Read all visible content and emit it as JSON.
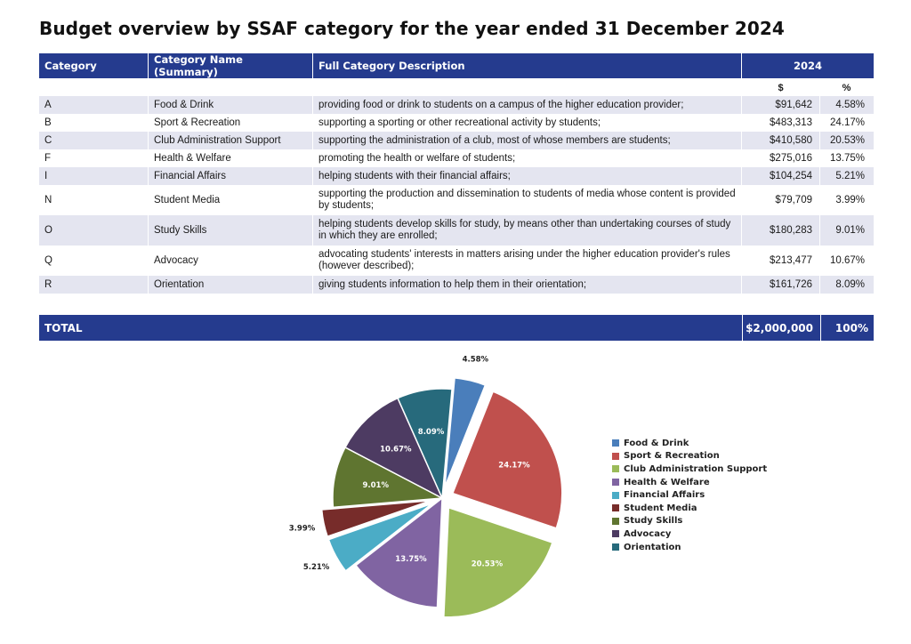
{
  "title": "Budget overview by SSAF category for the year ended 31 December 2024",
  "table": {
    "headers": {
      "category": "Category",
      "name": "Category Name (Summary)",
      "description": "Full Category Description",
      "year": "2024"
    },
    "units": {
      "amount": "$",
      "percent": "%"
    },
    "rows": [
      {
        "category": "A",
        "name": "Food & Drink",
        "description": "providing food or drink to students on a campus of the higher education provider;",
        "amount": "$91,642",
        "percent": "4.58%"
      },
      {
        "category": "B",
        "name": "Sport & Recreation",
        "description": "supporting a sporting or other recreational activity by students;",
        "amount": "$483,313",
        "percent": "24.17%"
      },
      {
        "category": "C",
        "name": "Club Administration Support",
        "description": "supporting the administration of a club, most of whose members are students;",
        "amount": "$410,580",
        "percent": "20.53%"
      },
      {
        "category": "F",
        "name": "Health & Welfare",
        "description": "promoting the health or welfare of students;",
        "amount": "$275,016",
        "percent": "13.75%"
      },
      {
        "category": "I",
        "name": "Financial Affairs",
        "description": "helping students with their financial affairs;",
        "amount": "$104,254",
        "percent": "5.21%"
      },
      {
        "category": "N",
        "name": "Student Media",
        "description": "supporting the production and dissemination to students of media whose content is provided by students;",
        "amount": "$79,709",
        "percent": "3.99%"
      },
      {
        "category": "O",
        "name": "Study Skills",
        "description": "helping students develop skills for study, by means other than undertaking courses of study in which they are enrolled;",
        "amount": "$180,283",
        "percent": "9.01%"
      },
      {
        "category": "Q",
        "name": "Advocacy",
        "description": "advocating students' interests in matters arising under the higher education provider's rules (however described);",
        "amount": "$213,477",
        "percent": "10.67%"
      },
      {
        "category": "R",
        "name": "Orientation",
        "description": "giving students information to help them in their orientation;",
        "amount": "$161,726",
        "percent": "8.09%"
      }
    ],
    "total": {
      "label": "TOTAL",
      "amount": "$2,000,000",
      "percent": "100%"
    }
  },
  "chart_data": {
    "type": "pie",
    "categories": [
      "Food & Drink",
      "Sport & Recreation",
      "Club Administration Support",
      "Health & Welfare",
      "Financial Affairs",
      "Student Media",
      "Study Skills",
      "Advocacy",
      "Orientation"
    ],
    "values": [
      4.58,
      24.17,
      20.53,
      13.75,
      5.21,
      3.99,
      9.01,
      10.67,
      8.09
    ],
    "labels": [
      "4.58%",
      "24.17%",
      "20.53%",
      "13.75%",
      "5.21%",
      "3.99%",
      "9.01%",
      "10.67%",
      "8.09%"
    ],
    "colors": [
      "#4a7ebb",
      "#c0504d",
      "#9bbb59",
      "#8064a2",
      "#4bacc6",
      "#772c2a",
      "#5f7530",
      "#4d3b62",
      "#276a7c"
    ],
    "exploded": [
      true,
      true,
      true,
      false,
      true,
      true,
      false,
      false,
      false
    ],
    "legend_position": "right"
  }
}
